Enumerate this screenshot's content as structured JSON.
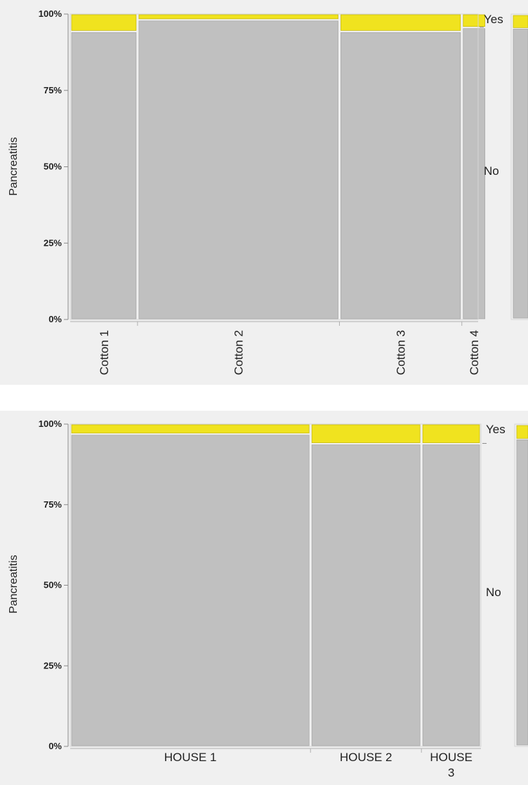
{
  "colors": {
    "yes": "#f0e31f",
    "no": "#c0c0c0",
    "panel_bg": "#f0f0f0",
    "gap": "#ffffff"
  },
  "chart_data": [
    {
      "type": "mosaic",
      "ylabel": "Pancreatitis",
      "yticks": [
        "100%",
        "75%",
        "50%",
        "25%",
        "0%"
      ],
      "legend": [
        "Yes",
        "No"
      ],
      "series": [
        {
          "name": "Yes"
        },
        {
          "name": "No"
        }
      ],
      "categories": [
        "Cotton 1",
        "Cotton 2",
        "Cotton 3",
        "Cotton 4"
      ],
      "widths": [
        0.165,
        0.495,
        0.3,
        0.06
      ],
      "yes_pct": [
        5.6,
        1.8,
        5.6,
        4.3
      ],
      "partial_next_yes_pct": 4.0
    },
    {
      "type": "mosaic",
      "ylabel": "Pancreatitis",
      "yticks": [
        "100%",
        "75%",
        "50%",
        "25%",
        "0%"
      ],
      "legend": [
        "Yes",
        "No"
      ],
      "series": [
        {
          "name": "Yes"
        },
        {
          "name": "No"
        }
      ],
      "categories": [
        "HOUSE 1",
        "HOUSE 2",
        "HOUSE 3"
      ],
      "widths": [
        0.585,
        0.27,
        0.145
      ],
      "yes_pct": [
        3.0,
        6.0,
        6.0
      ],
      "partial_next_yes_pct": 4.0
    }
  ]
}
